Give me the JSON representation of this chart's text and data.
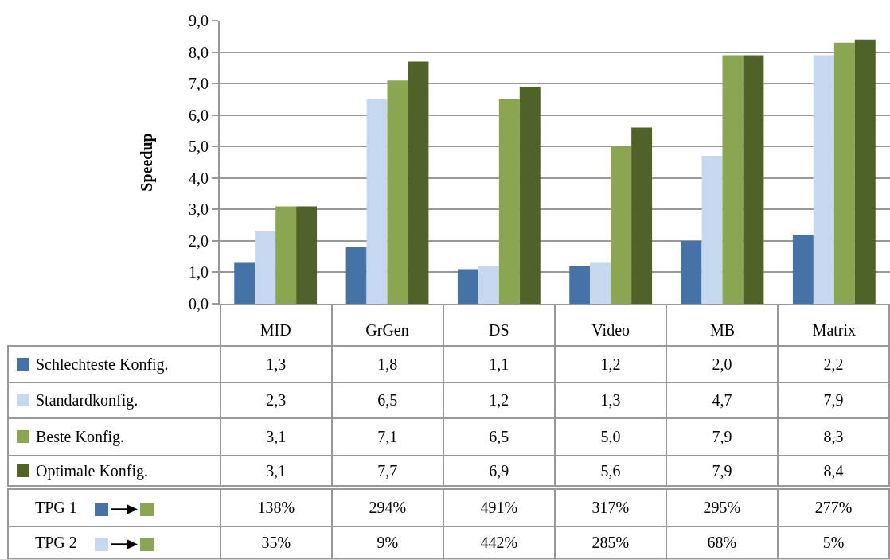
{
  "chart_data": {
    "type": "bar",
    "ylabel": "Speedup",
    "categories": [
      "MID",
      "GrGen",
      "DS",
      "Video",
      "MB",
      "Matrix"
    ],
    "series": [
      {
        "name": "Schlechteste Konfig.",
        "color": "#4572a7",
        "values": [
          1.3,
          1.8,
          1.1,
          1.2,
          2.0,
          2.2
        ],
        "value_labels": [
          "1,3",
          "1,8",
          "1,1",
          "1,2",
          "2,0",
          "2,2"
        ]
      },
      {
        "name": "Standardkonfig.",
        "color": "#c6d8f0",
        "values": [
          2.3,
          6.5,
          1.2,
          1.3,
          4.7,
          7.9
        ],
        "value_labels": [
          "2,3",
          "6,5",
          "1,2",
          "1,3",
          "4,7",
          "7,9"
        ]
      },
      {
        "name": "Beste Konfig.",
        "color": "#8ba650",
        "values": [
          3.1,
          7.1,
          6.5,
          5.0,
          7.9,
          8.3
        ],
        "value_labels": [
          "3,1",
          "7,1",
          "6,5",
          "5,0",
          "7,9",
          "8,3"
        ]
      },
      {
        "name": "Optimale Konfig.",
        "color": "#4f6228",
        "values": [
          3.1,
          7.7,
          6.9,
          5.6,
          7.9,
          8.4
        ],
        "value_labels": [
          "3,1",
          "7,7",
          "6,9",
          "5,6",
          "7,9",
          "8,4"
        ]
      }
    ],
    "ylim": [
      0,
      9
    ],
    "yticks": [
      {
        "value": 0,
        "label": "0,0"
      },
      {
        "value": 1,
        "label": "1,0"
      },
      {
        "value": 2,
        "label": "2,0"
      },
      {
        "value": 3,
        "label": "3,0"
      },
      {
        "value": 4,
        "label": "4,0"
      },
      {
        "value": 5,
        "label": "5,0"
      },
      {
        "value": 6,
        "label": "6,0"
      },
      {
        "value": 7,
        "label": "7,0"
      },
      {
        "value": 8,
        "label": "8,0"
      },
      {
        "value": 9,
        "label": "9,0"
      }
    ],
    "grid": "y",
    "legend": "bottom left",
    "annotations": [
      "TPG 1",
      "138%",
      "294%",
      "491%",
      "317%",
      "295%",
      "277%",
      "TPG 2",
      "35%",
      "9%",
      "442%",
      "285%",
      "68%",
      "5%"
    ]
  }
}
